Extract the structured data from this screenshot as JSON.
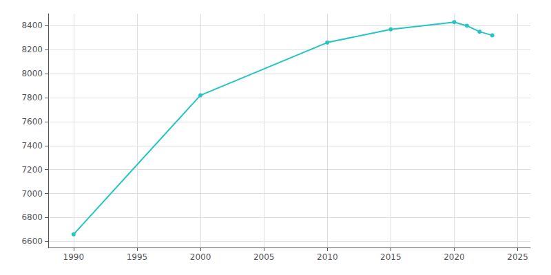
{
  "chart_data": {
    "type": "line",
    "x": [
      1990,
      2000,
      2010,
      2015,
      2020,
      2021,
      2022,
      2023
    ],
    "values": [
      6660,
      7820,
      8260,
      8370,
      8430,
      8400,
      8350,
      8320
    ],
    "color": "#22C4C4",
    "marker": "circle",
    "xlim": [
      1988,
      2026
    ],
    "ylim": [
      6550,
      8500
    ],
    "xticks": [
      1990,
      1995,
      2000,
      2005,
      2010,
      2015,
      2020,
      2025
    ],
    "yticks": [
      6600,
      6800,
      7000,
      7200,
      7400,
      7600,
      7800,
      8000,
      8200,
      8400
    ],
    "grid": true
  }
}
